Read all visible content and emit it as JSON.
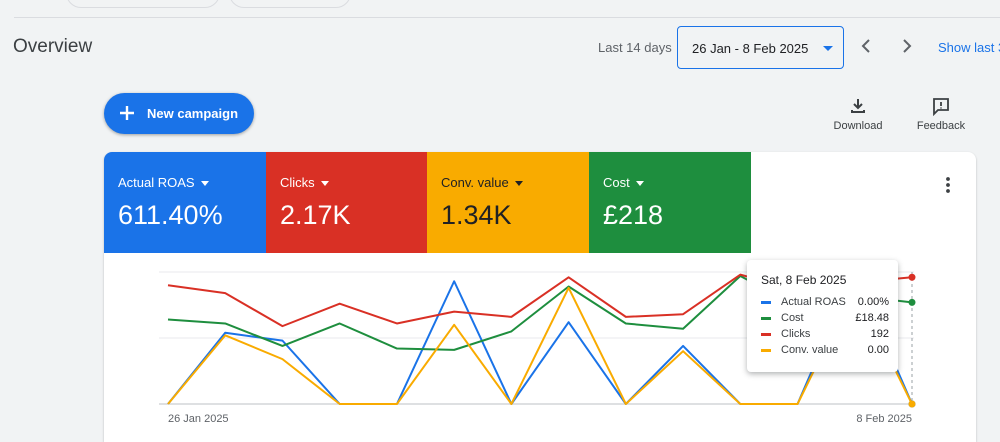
{
  "header": {
    "title": "Overview",
    "period_label": "Last 14 days",
    "date_range": "26 Jan - 8 Feb 2025",
    "show_last": "Show last 3"
  },
  "toolbar": {
    "new_campaign": "New campaign",
    "download": "Download",
    "feedback": "Feedback"
  },
  "metrics": [
    {
      "name": "Actual ROAS",
      "value": "611.40%",
      "color": "#1a73e8"
    },
    {
      "name": "Clicks",
      "value": "2.17K",
      "color": "#d93025"
    },
    {
      "name": "Conv. value",
      "value": "1.34K",
      "color": "#f9ab00"
    },
    {
      "name": "Cost",
      "value": "£218",
      "color": "#1e8e3e"
    }
  ],
  "tooltip": {
    "title": "Sat, 8 Feb 2025",
    "rows": [
      {
        "name": "Actual ROAS",
        "value": "0.00%",
        "color": "#1a73e8"
      },
      {
        "name": "Cost",
        "value": "£18.48",
        "color": "#1e8e3e"
      },
      {
        "name": "Clicks",
        "value": "192",
        "color": "#d93025"
      },
      {
        "name": "Conv. value",
        "value": "0.00",
        "color": "#f9ab00"
      }
    ]
  },
  "chart_data": {
    "type": "line",
    "x": [
      "26 Jan 2025",
      "27 Jan 2025",
      "28 Jan 2025",
      "29 Jan 2025",
      "30 Jan 2025",
      "31 Jan 2025",
      "1 Feb 2025",
      "2 Feb 2025",
      "3 Feb 2025",
      "4 Feb 2025",
      "5 Feb 2025",
      "6 Feb 2025",
      "7 Feb 2025",
      "8 Feb 2025"
    ],
    "tick_labels": [
      "26 Jan 2025",
      "8 Feb 2025"
    ],
    "grid": true,
    "series": [
      {
        "name": "Actual ROAS",
        "color": "#1a73e8",
        "values": [
          0,
          0.54,
          0.48,
          0,
          0,
          0.93,
          0,
          0.62,
          0,
          0.44,
          0,
          0,
          1.0,
          0
        ]
      },
      {
        "name": "Cost",
        "color": "#1e8e3e",
        "values": [
          0.64,
          0.61,
          0.44,
          0.61,
          0.42,
          0.41,
          0.55,
          0.89,
          0.61,
          0.57,
          0.97,
          0.74,
          0.82,
          0.77
        ]
      },
      {
        "name": "Clicks",
        "color": "#d93025",
        "values": [
          0.9,
          0.84,
          0.59,
          0.76,
          0.61,
          0.7,
          0.66,
          0.96,
          0.66,
          0.68,
          0.98,
          0.86,
          0.92,
          0.96
        ]
      },
      {
        "name": "Conv. value",
        "color": "#f9ab00",
        "values": [
          0,
          0.52,
          0.34,
          0,
          0,
          0.6,
          0,
          0.88,
          0,
          0.4,
          0,
          0,
          0.88,
          0
        ]
      }
    ]
  }
}
